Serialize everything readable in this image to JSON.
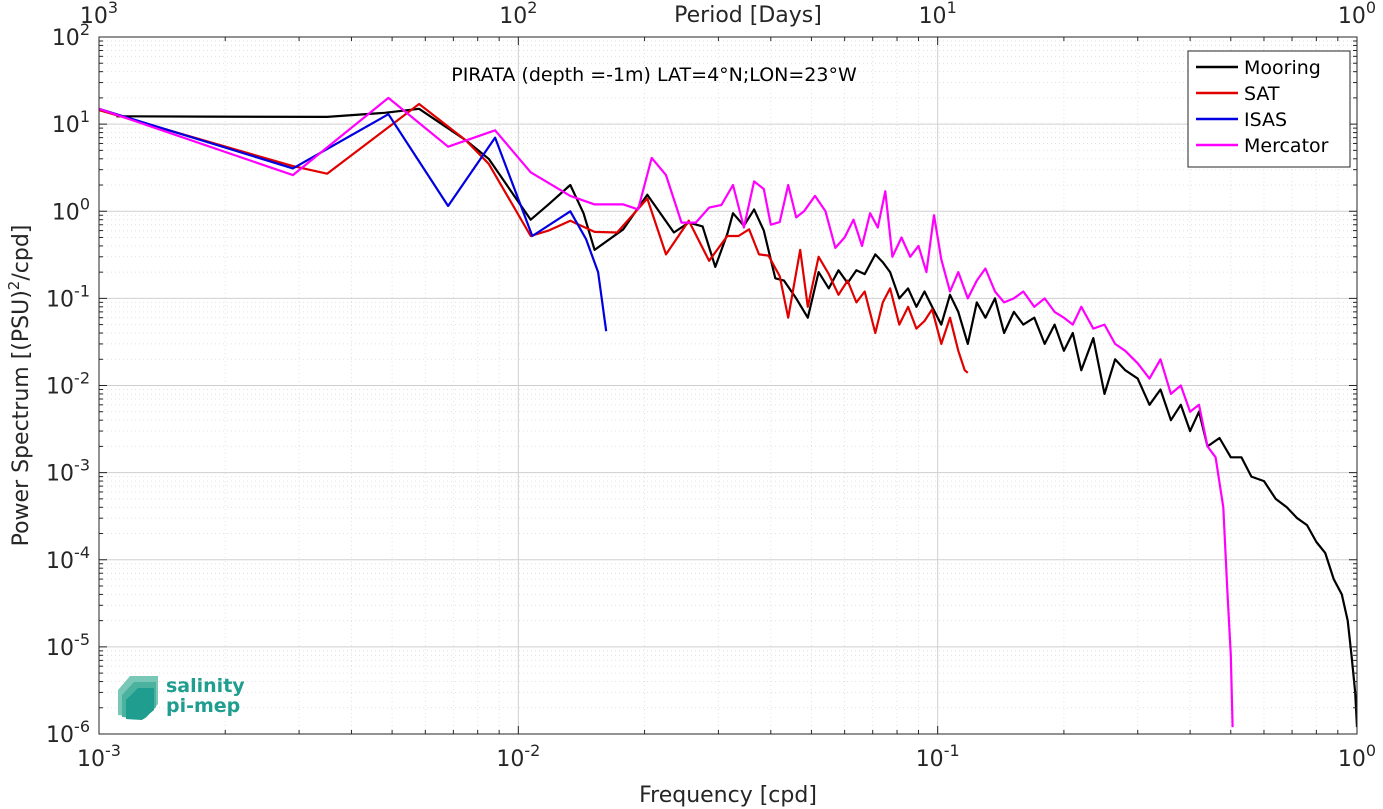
{
  "chart_data": {
    "type": "line",
    "title": "PIRATA (depth =-1m) LAT=4°N;LON=23°W",
    "xlabel": "Frequency [cpd]",
    "ylabel": "Power Spectrum [(PSU)²/cpd]",
    "top_xlabel": "Period [Days]",
    "x_scale": "log",
    "y_scale": "log",
    "xlim": [
      0.001,
      1
    ],
    "ylim": [
      1e-06,
      100
    ],
    "grid": true,
    "legend_position": "top-right",
    "x_ticks": [
      {
        "value": 0.001,
        "base": "10",
        "exp": "-3"
      },
      {
        "value": 0.01,
        "base": "10",
        "exp": "-2"
      },
      {
        "value": 0.1,
        "base": "10",
        "exp": "-1"
      },
      {
        "value": 1,
        "base": "10",
        "exp": "0"
      }
    ],
    "top_ticks": [
      {
        "value": 0.001,
        "base": "10",
        "exp": "3"
      },
      {
        "value": 0.01,
        "base": "10",
        "exp": "2"
      },
      {
        "value": 0.1,
        "base": "10",
        "exp": "1"
      },
      {
        "value": 1,
        "base": "10",
        "exp": "0"
      }
    ],
    "y_ticks": [
      {
        "value": 100,
        "base": "10",
        "exp": "2"
      },
      {
        "value": 10,
        "base": "10",
        "exp": "1"
      },
      {
        "value": 1,
        "base": "10",
        "exp": "0"
      },
      {
        "value": 0.1,
        "base": "10",
        "exp": "-1"
      },
      {
        "value": 0.01,
        "base": "10",
        "exp": "-2"
      },
      {
        "value": 0.001,
        "base": "10",
        "exp": "-3"
      },
      {
        "value": 0.0001,
        "base": "10",
        "exp": "-4"
      },
      {
        "value": 1e-05,
        "base": "10",
        "exp": "-5"
      },
      {
        "value": 1e-06,
        "base": "10",
        "exp": "-6"
      }
    ],
    "series": [
      {
        "name": "Mooring",
        "color": "#000000",
        "points": [
          [
            0.0011,
            12.3
          ],
          [
            0.0018,
            12.2
          ],
          [
            0.0035,
            12.1
          ],
          [
            0.0048,
            13.5
          ],
          [
            0.0058,
            15.0
          ],
          [
            0.0075,
            6.5
          ],
          [
            0.0085,
            4.0
          ],
          [
            0.0107,
            0.8
          ],
          [
            0.0118,
            1.2
          ],
          [
            0.0133,
            2.0
          ],
          [
            0.0143,
            0.95
          ],
          [
            0.0152,
            0.36
          ],
          [
            0.0178,
            0.62
          ],
          [
            0.0203,
            1.55
          ],
          [
            0.0235,
            0.57
          ],
          [
            0.0255,
            0.74
          ],
          [
            0.0275,
            0.67
          ],
          [
            0.0295,
            0.23
          ],
          [
            0.0315,
            0.55
          ],
          [
            0.0325,
            0.95
          ],
          [
            0.0345,
            0.68
          ],
          [
            0.0365,
            1.05
          ],
          [
            0.0385,
            0.6
          ],
          [
            0.041,
            0.17
          ],
          [
            0.043,
            0.16
          ],
          [
            0.046,
            0.1
          ],
          [
            0.049,
            0.06
          ],
          [
            0.052,
            0.2
          ],
          [
            0.055,
            0.13
          ],
          [
            0.058,
            0.21
          ],
          [
            0.061,
            0.15
          ],
          [
            0.064,
            0.21
          ],
          [
            0.067,
            0.19
          ],
          [
            0.071,
            0.32
          ],
          [
            0.074,
            0.26
          ],
          [
            0.077,
            0.2
          ],
          [
            0.081,
            0.1
          ],
          [
            0.085,
            0.13
          ],
          [
            0.089,
            0.08
          ],
          [
            0.093,
            0.12
          ],
          [
            0.097,
            0.08
          ],
          [
            0.102,
            0.05
          ],
          [
            0.107,
            0.11
          ],
          [
            0.112,
            0.07
          ],
          [
            0.118,
            0.03
          ],
          [
            0.124,
            0.09
          ],
          [
            0.13,
            0.06
          ],
          [
            0.137,
            0.1
          ],
          [
            0.144,
            0.04
          ],
          [
            0.152,
            0.07
          ],
          [
            0.16,
            0.05
          ],
          [
            0.17,
            0.06
          ],
          [
            0.18,
            0.03
          ],
          [
            0.19,
            0.05
          ],
          [
            0.2,
            0.025
          ],
          [
            0.21,
            0.04
          ],
          [
            0.22,
            0.015
          ],
          [
            0.235,
            0.035
          ],
          [
            0.25,
            0.008
          ],
          [
            0.265,
            0.02
          ],
          [
            0.28,
            0.015
          ],
          [
            0.3,
            0.012
          ],
          [
            0.32,
            0.006
          ],
          [
            0.34,
            0.009
          ],
          [
            0.36,
            0.004
          ],
          [
            0.38,
            0.006
          ],
          [
            0.4,
            0.003
          ],
          [
            0.42,
            0.005
          ],
          [
            0.44,
            0.002
          ],
          [
            0.47,
            0.0025
          ],
          [
            0.5,
            0.0015
          ],
          [
            0.53,
            0.0015
          ],
          [
            0.56,
            0.0009
          ],
          [
            0.6,
            0.0008
          ],
          [
            0.64,
            0.0005
          ],
          [
            0.68,
            0.0004
          ],
          [
            0.72,
            0.0003
          ],
          [
            0.76,
            0.00025
          ],
          [
            0.8,
            0.00016
          ],
          [
            0.84,
            0.00012
          ],
          [
            0.88,
            6e-05
          ],
          [
            0.92,
            4e-05
          ],
          [
            0.95,
            2e-05
          ],
          [
            0.97,
            8e-06
          ],
          [
            0.99,
            3e-06
          ],
          [
            1.0,
            1.2e-06
          ]
        ]
      },
      {
        "name": "SAT",
        "color": "#e00000",
        "points": [
          [
            0.001,
            14.5
          ],
          [
            0.0029,
            3.3
          ],
          [
            0.0035,
            2.7
          ],
          [
            0.0058,
            17.0
          ],
          [
            0.0075,
            6.5
          ],
          [
            0.0085,
            3.5
          ],
          [
            0.0107,
            0.52
          ],
          [
            0.0118,
            0.6
          ],
          [
            0.0133,
            0.78
          ],
          [
            0.0152,
            0.58
          ],
          [
            0.0172,
            0.57
          ],
          [
            0.0203,
            1.4
          ],
          [
            0.0225,
            0.32
          ],
          [
            0.0255,
            0.78
          ],
          [
            0.0285,
            0.27
          ],
          [
            0.0315,
            0.52
          ],
          [
            0.0335,
            0.52
          ],
          [
            0.0355,
            0.62
          ],
          [
            0.0375,
            0.32
          ],
          [
            0.0395,
            0.31
          ],
          [
            0.042,
            0.18
          ],
          [
            0.044,
            0.06
          ],
          [
            0.047,
            0.36
          ],
          [
            0.049,
            0.08
          ],
          [
            0.052,
            0.3
          ],
          [
            0.055,
            0.19
          ],
          [
            0.058,
            0.11
          ],
          [
            0.061,
            0.16
          ],
          [
            0.064,
            0.09
          ],
          [
            0.067,
            0.12
          ],
          [
            0.071,
            0.04
          ],
          [
            0.074,
            0.09
          ],
          [
            0.077,
            0.13
          ],
          [
            0.081,
            0.05
          ],
          [
            0.085,
            0.08
          ],
          [
            0.089,
            0.045
          ],
          [
            0.093,
            0.055
          ],
          [
            0.097,
            0.075
          ],
          [
            0.102,
            0.03
          ],
          [
            0.107,
            0.06
          ],
          [
            0.112,
            0.025
          ],
          [
            0.116,
            0.015
          ],
          [
            0.118,
            0.014
          ]
        ]
      },
      {
        "name": "ISAS",
        "color": "#0000e0",
        "points": [
          [
            0.001,
            15.0
          ],
          [
            0.0029,
            3.1
          ],
          [
            0.0049,
            13.0
          ],
          [
            0.0068,
            1.15
          ],
          [
            0.0088,
            7.0
          ],
          [
            0.0108,
            0.52
          ],
          [
            0.0133,
            1.0
          ],
          [
            0.0145,
            0.48
          ],
          [
            0.0155,
            0.2
          ],
          [
            0.0162,
            0.042
          ]
        ]
      },
      {
        "name": "Mercator",
        "color": "#ff00ff",
        "points": [
          [
            0.001,
            15.0
          ],
          [
            0.0029,
            2.6
          ],
          [
            0.0049,
            20.0
          ],
          [
            0.0068,
            5.5
          ],
          [
            0.0088,
            8.5
          ],
          [
            0.0107,
            2.8
          ],
          [
            0.0133,
            1.5
          ],
          [
            0.0152,
            1.2
          ],
          [
            0.0178,
            1.2
          ],
          [
            0.0193,
            1.05
          ],
          [
            0.0208,
            4.1
          ],
          [
            0.0225,
            2.6
          ],
          [
            0.0245,
            0.74
          ],
          [
            0.0265,
            0.74
          ],
          [
            0.0285,
            1.1
          ],
          [
            0.0305,
            1.18
          ],
          [
            0.0325,
            2.0
          ],
          [
            0.0345,
            0.65
          ],
          [
            0.0365,
            2.2
          ],
          [
            0.0385,
            1.8
          ],
          [
            0.04,
            0.7
          ],
          [
            0.042,
            0.75
          ],
          [
            0.044,
            2.0
          ],
          [
            0.046,
            0.85
          ],
          [
            0.048,
            1.0
          ],
          [
            0.051,
            1.5
          ],
          [
            0.054,
            1.0
          ],
          [
            0.057,
            0.38
          ],
          [
            0.06,
            0.5
          ],
          [
            0.063,
            0.8
          ],
          [
            0.066,
            0.4
          ],
          [
            0.069,
            0.95
          ],
          [
            0.072,
            0.65
          ],
          [
            0.075,
            1.7
          ],
          [
            0.078,
            0.3
          ],
          [
            0.082,
            0.5
          ],
          [
            0.086,
            0.3
          ],
          [
            0.09,
            0.4
          ],
          [
            0.094,
            0.2
          ],
          [
            0.098,
            0.9
          ],
          [
            0.102,
            0.28
          ],
          [
            0.107,
            0.12
          ],
          [
            0.112,
            0.2
          ],
          [
            0.118,
            0.1
          ],
          [
            0.124,
            0.16
          ],
          [
            0.13,
            0.22
          ],
          [
            0.137,
            0.12
          ],
          [
            0.144,
            0.09
          ],
          [
            0.152,
            0.1
          ],
          [
            0.16,
            0.12
          ],
          [
            0.17,
            0.08
          ],
          [
            0.18,
            0.1
          ],
          [
            0.19,
            0.07
          ],
          [
            0.2,
            0.06
          ],
          [
            0.21,
            0.05
          ],
          [
            0.22,
            0.08
          ],
          [
            0.235,
            0.045
          ],
          [
            0.25,
            0.05
          ],
          [
            0.265,
            0.03
          ],
          [
            0.28,
            0.025
          ],
          [
            0.3,
            0.018
          ],
          [
            0.32,
            0.012
          ],
          [
            0.34,
            0.02
          ],
          [
            0.36,
            0.008
          ],
          [
            0.38,
            0.01
          ],
          [
            0.4,
            0.005
          ],
          [
            0.42,
            0.006
          ],
          [
            0.44,
            0.002
          ],
          [
            0.46,
            0.0015
          ],
          [
            0.48,
            0.0004
          ],
          [
            0.49,
            5e-05
          ],
          [
            0.5,
            8e-06
          ],
          [
            0.505,
            1.2e-06
          ]
        ]
      }
    ],
    "logo_lines": [
      "salinity",
      "pi-mep"
    ]
  }
}
